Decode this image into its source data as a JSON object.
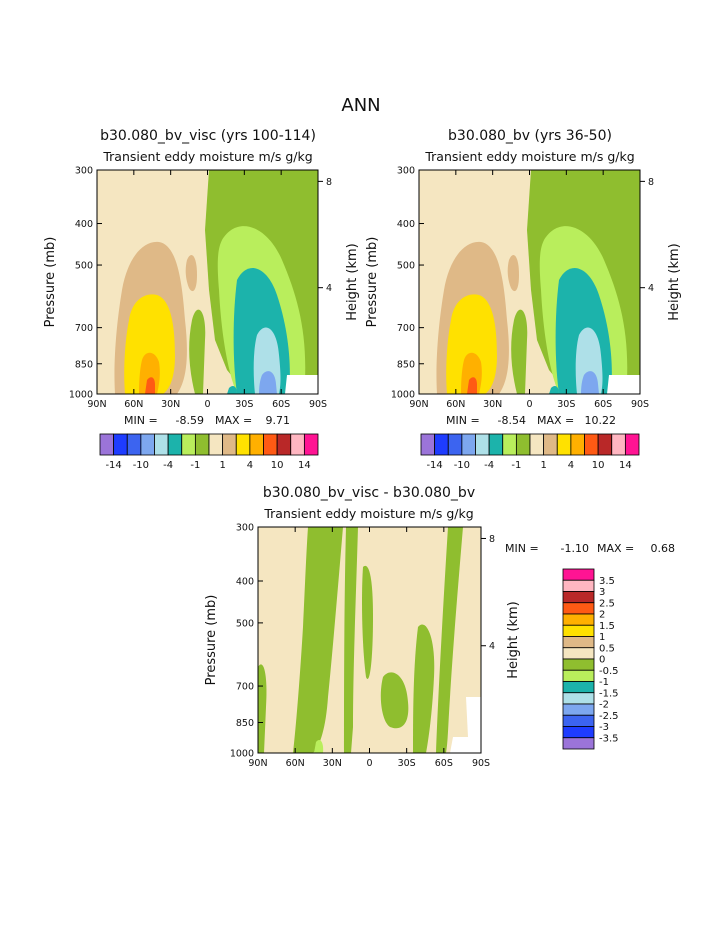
{
  "page_title": "ANN",
  "chart_data": [
    {
      "type": "heatmap",
      "title": "b30.080_bv_visc (yrs 100-114)",
      "subtitle": "Transient eddy moisture m/s g/kg",
      "ylabel": "Pressure (mb)",
      "y2label": "Height (km)",
      "x_ticks": [
        "90N",
        "60N",
        "30N",
        "0",
        "30S",
        "60S",
        "90S"
      ],
      "y_ticks": [
        "300",
        "400",
        "500",
        "700",
        "850",
        "1000"
      ],
      "y2_ticks": [
        "8",
        "4"
      ],
      "ylim": [
        1000,
        300
      ],
      "min_label": "MIN =",
      "min_value": "-8.59",
      "max_label": "MAX =",
      "max_value": "9.71",
      "colorbar_labels": [
        "-14",
        "-10",
        "-4",
        "-1",
        "1",
        "4",
        "10",
        "14"
      ],
      "colorbar_colors": [
        "#9b74d9",
        "#1e3cff",
        "#3c64f0",
        "#7da7ef",
        "#aee0e8",
        "#1cb3ab",
        "#b9ee5c",
        "#8fbe2f",
        "#f5e6c1",
        "#dfb987",
        "#ffe100",
        "#ffb000",
        "#ff5a14",
        "#b92828",
        "#ffb6c1",
        "#ff1493"
      ]
    },
    {
      "type": "heatmap",
      "title": "b30.080_bv (yrs 36-50)",
      "subtitle": "Transient eddy moisture m/s g/kg",
      "ylabel": "Pressure (mb)",
      "y2label": "Height (km)",
      "x_ticks": [
        "90N",
        "60N",
        "30N",
        "0",
        "30S",
        "60S",
        "90S"
      ],
      "y_ticks": [
        "300",
        "400",
        "500",
        "700",
        "850",
        "1000"
      ],
      "y2_ticks": [
        "8",
        "4"
      ],
      "ylim": [
        1000,
        300
      ],
      "min_label": "MIN =",
      "min_value": "-8.54",
      "max_label": "MAX =",
      "max_value": "10.22",
      "colorbar_labels": [
        "-14",
        "-10",
        "-4",
        "-1",
        "1",
        "4",
        "10",
        "14"
      ],
      "colorbar_colors": [
        "#9b74d9",
        "#1e3cff",
        "#3c64f0",
        "#7da7ef",
        "#aee0e8",
        "#1cb3ab",
        "#b9ee5c",
        "#8fbe2f",
        "#f5e6c1",
        "#dfb987",
        "#ffe100",
        "#ffb000",
        "#ff5a14",
        "#b92828",
        "#ffb6c1",
        "#ff1493"
      ]
    },
    {
      "type": "heatmap",
      "title": "b30.080_bv_visc - b30.080_bv",
      "subtitle": "Transient eddy moisture m/s g/kg",
      "ylabel": "Pressure (mb)",
      "y2label": "Height (km)",
      "x_ticks": [
        "90N",
        "60N",
        "30N",
        "0",
        "30S",
        "60S",
        "90S"
      ],
      "y_ticks": [
        "300",
        "400",
        "500",
        "700",
        "850",
        "1000"
      ],
      "y2_ticks": [
        "8",
        "4"
      ],
      "ylim": [
        1000,
        300
      ],
      "min_label": "MIN =",
      "min_value": "-1.10",
      "max_label": "MAX =",
      "max_value": "0.68",
      "colorbar_labels": [
        "3.5",
        "3",
        "2.5",
        "2",
        "1.5",
        "1",
        "0.5",
        "0",
        "-0.5",
        "-1",
        "-1.5",
        "-2",
        "-2.5",
        "-3",
        "-3.5"
      ],
      "colorbar_colors": [
        "#ff1493",
        "#ffb6c1",
        "#b92828",
        "#ff5a14",
        "#ffb000",
        "#ffe100",
        "#dfb987",
        "#f5e6c1",
        "#8fbe2f",
        "#b9ee5c",
        "#1cb3ab",
        "#aee0e8",
        "#7da7ef",
        "#3c64f0",
        "#1e3cff",
        "#9b74d9"
      ]
    }
  ]
}
